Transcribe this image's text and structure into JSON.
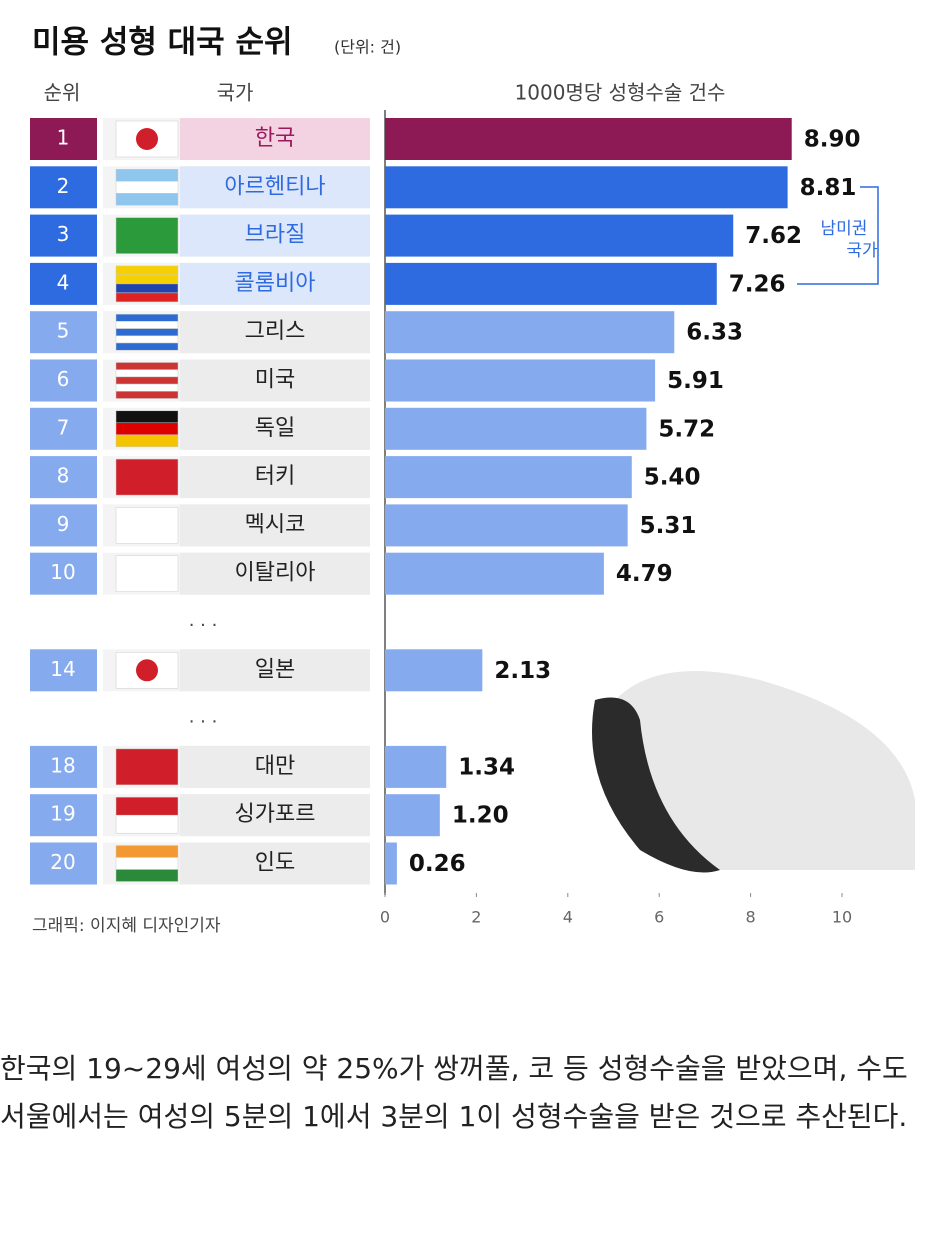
{
  "chart_data": {
    "type": "bar",
    "title": "미용 성형 대국 순위",
    "unit": "(단위: 건)",
    "rank_header": "순위",
    "country_header": "국가",
    "value_header": "1000명당 성형수술 건수",
    "ranks": [
      1,
      2,
      3,
      4,
      5,
      6,
      7,
      8,
      9,
      10,
      14,
      18,
      19,
      20
    ],
    "categories": [
      "한국",
      "아르헨티나",
      "브라질",
      "콜롬비아",
      "그리스",
      "미국",
      "독일",
      "터키",
      "멕시코",
      "이탈리아",
      "일본",
      "대만",
      "싱가포르",
      "인도"
    ],
    "values": [
      8.9,
      8.81,
      7.62,
      7.26,
      6.33,
      5.91,
      5.72,
      5.4,
      5.31,
      4.79,
      2.13,
      1.34,
      1.2,
      0.26
    ],
    "value_labels": [
      "8.90",
      "8.81",
      "7.62",
      "7.26",
      "6.33",
      "5.91",
      "5.72",
      "5.40",
      "5.31",
      "4.79",
      "2.13",
      "1.34",
      "1.20",
      "0.26"
    ],
    "colors": [
      "#8e1a55",
      "#2f6be0",
      "#2f6be0",
      "#2f6be0",
      "#86aaee",
      "#86aaee",
      "#86aaee",
      "#86aaee",
      "#86aaee",
      "#86aaee",
      "#86aaee",
      "#86aaee",
      "#86aaee",
      "#86aaee"
    ],
    "gap_label": "· · ·",
    "annotation": [
      "남미권",
      "국가"
    ],
    "xlim": [
      0,
      10
    ],
    "xticks": [
      0,
      2,
      4,
      6,
      8,
      10
    ],
    "credit": "그래픽: 이지혜 디자인기자"
  },
  "caption": "한국의 19~29세 여성의 약 25%가 쌍꺼풀, 코 등 성형수술을 받았으며, 수도 서울에서는 여성의 5분의 1에서 3분의 1이 성형수술을 받은 것으로 추산된다."
}
